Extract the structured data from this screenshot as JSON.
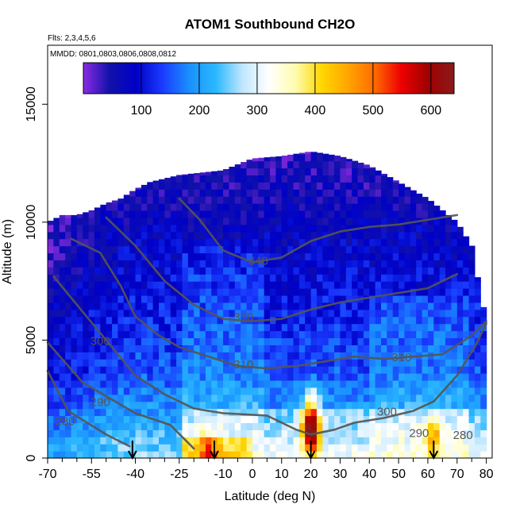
{
  "chart_data": {
    "type": "heatmap",
    "title": "ATOM1 Southbound CH2O",
    "flights_label": "Flts: 2,3,4,5,6",
    "dates_label": "MMDD: 0801,0803,0806,0808,0812",
    "xlabel": "Latitude (deg N)",
    "ylabel": "Altitude (m)",
    "xlim": [
      -70,
      82
    ],
    "ylim": [
      0,
      17500
    ],
    "x_ticks": [
      -70,
      -55,
      -40,
      -25,
      -10,
      0,
      10,
      20,
      30,
      40,
      50,
      60,
      70,
      80
    ],
    "x_minor_ticks": [
      -65,
      -60,
      -50,
      -45,
      -35,
      -30,
      -20,
      -15,
      -5,
      5,
      15,
      25,
      35,
      45,
      55,
      65,
      75
    ],
    "y_ticks": [
      0,
      5000,
      10000,
      15000
    ],
    "colorbar": {
      "range": [
        0,
        640
      ],
      "ticks": [
        100,
        200,
        300,
        400,
        500,
        600
      ],
      "colors": [
        "#8a2be2",
        "#1111aa",
        "#0000c8",
        "#1a3cff",
        "#1a90ff",
        "#2ab8ff",
        "#bfe6ff",
        "#ffffff",
        "#fffcb0",
        "#ffd700",
        "#ffa500",
        "#ff6a00",
        "#ee0000",
        "#a00000",
        "#8a1a1a"
      ]
    },
    "data_ceiling": [
      [
        -70,
        10000
      ],
      [
        -65,
        10300
      ],
      [
        -60,
        10300
      ],
      [
        -55,
        10500
      ],
      [
        -50,
        10800
      ],
      [
        -45,
        11000
      ],
      [
        -40,
        11400
      ],
      [
        -35,
        11700
      ],
      [
        -25,
        12000
      ],
      [
        -10,
        12200
      ],
      [
        0,
        12700
      ],
      [
        10,
        12800
      ],
      [
        20,
        13000
      ],
      [
        30,
        12800
      ],
      [
        40,
        12400
      ],
      [
        50,
        11700
      ],
      [
        60,
        11000
      ],
      [
        65,
        10500
      ],
      [
        70,
        10000
      ],
      [
        75,
        9000
      ],
      [
        78,
        7000
      ],
      [
        80,
        5800
      ]
    ],
    "hotspots": [
      {
        "lat": 20,
        "alt": 1100,
        "value": 620
      },
      {
        "lat": -15,
        "alt": 300,
        "value": 380
      },
      {
        "lat": 62,
        "alt": 900,
        "value": 390
      },
      {
        "lat": 20,
        "alt": 2300,
        "value": 420
      }
    ],
    "theta_contours": [
      {
        "label": "280",
        "points": [
          [
            -70,
            3700
          ],
          [
            -63,
            2000
          ],
          [
            -50,
            1000
          ],
          [
            -42,
            500
          ]
        ]
      },
      {
        "label": "290",
        "points": [
          [
            -70,
            4900
          ],
          [
            -58,
            3200
          ],
          [
            -40,
            1900
          ],
          [
            -28,
            1400
          ],
          [
            -20,
            400
          ]
        ]
      },
      {
        "label": "300",
        "points": [
          [
            -68,
            7700
          ],
          [
            -58,
            6200
          ],
          [
            -48,
            4700
          ],
          [
            -40,
            3500
          ],
          [
            -30,
            2700
          ],
          [
            -20,
            2100
          ],
          [
            -10,
            1900
          ],
          [
            5,
            1800
          ],
          [
            15,
            1200
          ],
          [
            20,
            1000
          ],
          [
            28,
            1200
          ],
          [
            35,
            1500
          ],
          [
            45,
            1700
          ],
          [
            55,
            2000
          ],
          [
            62,
            2400
          ],
          [
            70,
            3500
          ],
          [
            76,
            4700
          ],
          [
            80,
            5700
          ]
        ]
      },
      {
        "label": "310",
        "points": [
          [
            -62,
            9300
          ],
          [
            -52,
            8700
          ],
          [
            -45,
            7300
          ],
          [
            -40,
            6000
          ],
          [
            -32,
            5200
          ],
          [
            -25,
            4700
          ],
          [
            -15,
            4300
          ],
          [
            -5,
            3900
          ],
          [
            5,
            3800
          ],
          [
            15,
            3900
          ],
          [
            25,
            4100
          ],
          [
            35,
            4300
          ],
          [
            45,
            4200
          ],
          [
            55,
            4300
          ],
          [
            65,
            4400
          ],
          [
            75,
            5200
          ],
          [
            80,
            5800
          ]
        ]
      },
      {
        "label": "330",
        "points": [
          [
            -50,
            10200
          ],
          [
            -40,
            9000
          ],
          [
            -30,
            7500
          ],
          [
            -20,
            6500
          ],
          [
            -10,
            5900
          ],
          [
            0,
            5800
          ],
          [
            10,
            5900
          ],
          [
            20,
            6300
          ],
          [
            30,
            6600
          ],
          [
            40,
            6800
          ],
          [
            50,
            7000
          ],
          [
            60,
            7200
          ],
          [
            70,
            7800
          ]
        ]
      },
      {
        "label": "340",
        "points": [
          [
            -25,
            11000
          ],
          [
            -18,
            10100
          ],
          [
            -10,
            8800
          ],
          [
            0,
            8300
          ],
          [
            10,
            8500
          ],
          [
            20,
            9200
          ],
          [
            30,
            9600
          ],
          [
            40,
            9800
          ],
          [
            50,
            9900
          ],
          [
            60,
            10100
          ],
          [
            70,
            10300
          ]
        ]
      }
    ],
    "flight_markers": [
      -41,
      -13,
      20,
      62
    ],
    "contour_labels": [
      {
        "text": "340",
        "lat": 2,
        "alt": 8200
      },
      {
        "text": "330",
        "lat": -3,
        "alt": 5800
      },
      {
        "text": "310",
        "lat": -3,
        "alt": 3800
      },
      {
        "text": "310",
        "lat": 51,
        "alt": 4100
      },
      {
        "text": "300",
        "lat": 46,
        "alt": 1800
      },
      {
        "text": "300",
        "lat": -52,
        "alt": 4800
      },
      {
        "text": "290",
        "lat": -52,
        "alt": 2200
      },
      {
        "text": "280",
        "lat": -64,
        "alt": 1400
      },
      {
        "text": "290",
        "lat": 57,
        "alt": 900
      },
      {
        "text": "280",
        "lat": 72,
        "alt": 800
      }
    ]
  }
}
